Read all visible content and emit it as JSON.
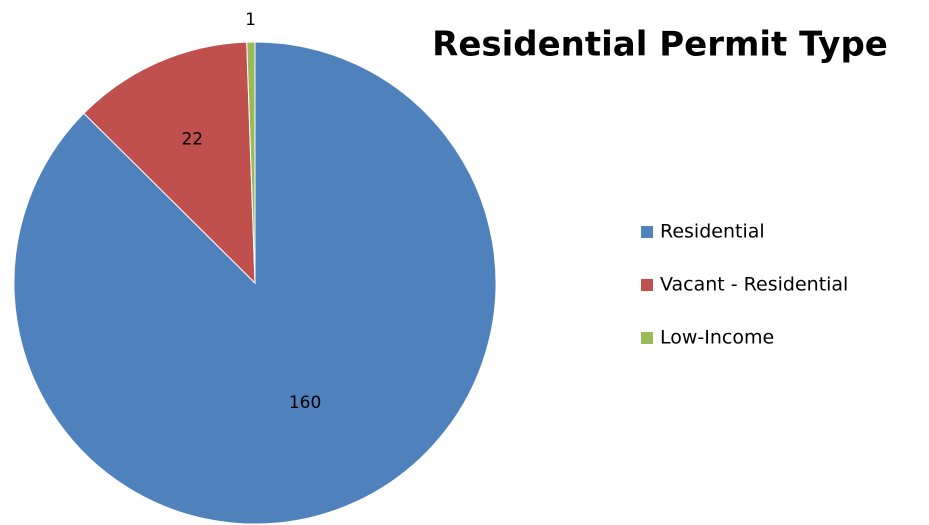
{
  "chart_data": {
    "type": "pie",
    "title": "Residential Permit Type",
    "categories": [
      "Residential",
      "Vacant - Residential",
      "Low-Income"
    ],
    "values": [
      160,
      22,
      1
    ],
    "colors": [
      "#4f81bd",
      "#c0504d",
      "#9bbb59"
    ],
    "legend": "right"
  }
}
